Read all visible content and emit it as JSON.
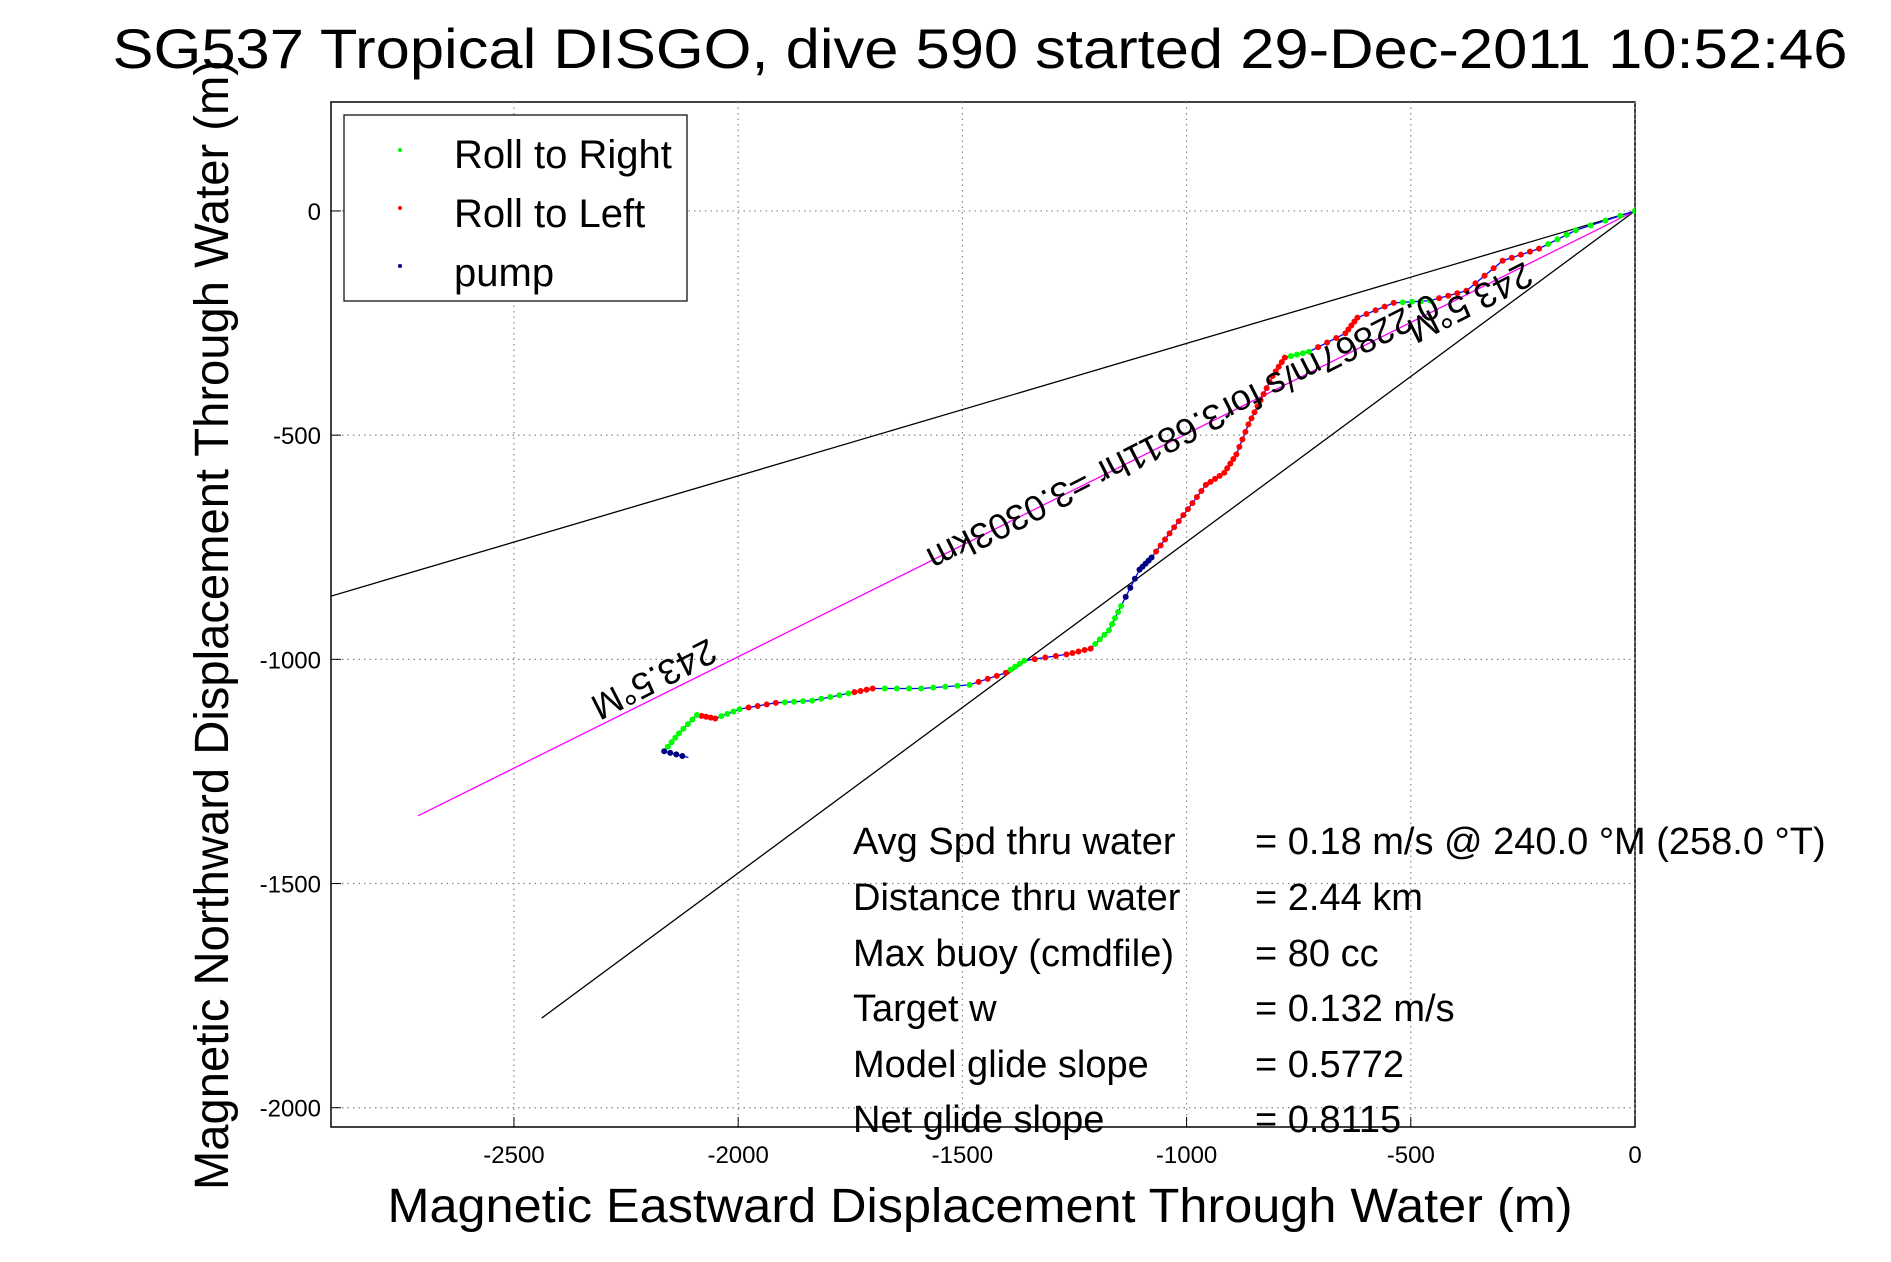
{
  "chart_data": {
    "type": "line",
    "title": "SG537 Tropical DISGO, dive 590 started 29-Dec-2011 10:52:46",
    "xlabel": "Magnetic Eastward Displacement Through Water (m)",
    "ylabel": "Magnetic Northward Displacement Through Water (m)",
    "xlim": [
      -2908,
      0
    ],
    "ylim": [
      -2043,
      243
    ],
    "grid": true,
    "xticks": [
      -2500,
      -2000,
      -1500,
      -1000,
      -500,
      0
    ],
    "yticks": [
      0,
      -500,
      -1000,
      -1500,
      -2000
    ],
    "legend": {
      "placement": "top-left",
      "entries": [
        {
          "label": "Roll to Right",
          "color": "#00ff00"
        },
        {
          "label": "Roll to Left",
          "color": "#ff0000"
        },
        {
          "label": "pump",
          "color": "#000080"
        }
      ]
    },
    "track": {
      "color": "#0000ff",
      "x": [
        0,
        -132,
        -214,
        -295,
        -376,
        -457,
        -538,
        -619,
        -646,
        -727,
        -781,
        -808,
        -835,
        -862,
        -889,
        -916,
        -957,
        -997,
        -1038,
        -1078,
        -1105,
        -1146,
        -1173,
        -1214,
        -1268,
        -1362,
        -1403,
        -1484,
        -1592,
        -1700,
        -1754,
        -1835,
        -1916,
        -1997,
        -2051,
        -2092,
        -2132,
        -2165,
        -2111
      ],
      "y": [
        0,
        -43,
        -84,
        -111,
        -178,
        -200,
        -205,
        -238,
        -273,
        -314,
        -327,
        -368,
        -422,
        -476,
        -543,
        -584,
        -611,
        -665,
        -719,
        -773,
        -800,
        -881,
        -935,
        -976,
        -989,
        -1003,
        -1030,
        -1057,
        -1065,
        -1065,
        -1076,
        -1092,
        -1097,
        -1111,
        -1132,
        -1124,
        -1165,
        -1205,
        -1219
      ],
      "roll": [
        "g",
        "g",
        "r",
        "r",
        "r",
        "g",
        "r",
        "r",
        "r",
        "g",
        "r",
        "r",
        "r",
        "r",
        "r",
        "r",
        "r",
        "r",
        "r",
        "b",
        "b",
        "g",
        "g",
        "r",
        "r",
        "g",
        "r",
        "g",
        "g",
        "r",
        "g",
        "g",
        "r",
        "g",
        "r",
        "g",
        "g",
        "b",
        "g"
      ]
    },
    "lines": [
      {
        "name": "upper-bound",
        "color": "#000000",
        "x": [
          0,
          -2908
        ],
        "y": [
          0,
          -859
        ]
      },
      {
        "name": "lower-bound",
        "color": "#000000",
        "x": [
          0,
          -2438
        ],
        "y": [
          0,
          -1800
        ]
      },
      {
        "name": "heading-line",
        "color": "#ff00ff",
        "x": [
          0,
          -2714
        ],
        "y": [
          0,
          -1349
        ]
      }
    ],
    "annotations": [
      {
        "text": "243.5°M",
        "x": -380,
        "y": -180,
        "rotation": 153
      },
      {
        "text": "0.22867m/s for3.6811hr =3.0303km",
        "x": -1020,
        "y": -470,
        "rotation": 153
      },
      {
        "text": "243.5°M",
        "x": -2200,
        "y": -1020,
        "rotation": 153
      }
    ],
    "stats": [
      {
        "label": "Avg Spd thru water",
        "value": "=  0.18 m/s @ 240.0 °M (258.0 °T)"
      },
      {
        "label": "Distance thru water",
        "value": "=  2.44 km"
      },
      {
        "label": "Max buoy (cmdfile)",
        "value": "= 80 cc"
      },
      {
        "label": "Target w",
        "value": "= 0.132 m/s"
      },
      {
        "label": "Model glide slope",
        "value": "= 0.5772"
      },
      {
        "label": "Net glide slope",
        "value": "= 0.8115"
      }
    ]
  }
}
